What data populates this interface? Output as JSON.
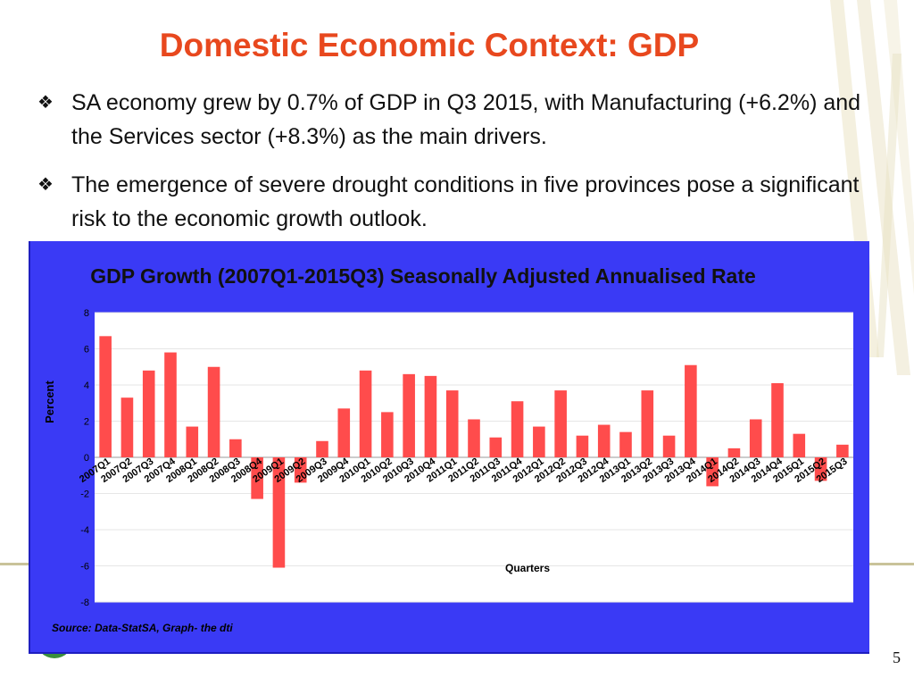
{
  "slide": {
    "title": "Domestic Economic Context: GDP",
    "page_number": "5",
    "bullets": [
      {
        "text": "SA economy grew by 0.7% of GDP in Q3 2015, with Manufacturing (+6.2%) and the Services sector (+8.3%) as the main drivers."
      },
      {
        "text": "The emergence of severe drought conditions in five provinces pose a significant risk to the economic growth outlook."
      }
    ],
    "source": "Source: Data-StatSA, Graph- the dti",
    "colors": {
      "title": "#e8481e",
      "panel": "#3a3af5",
      "bar": "#ff4c4c"
    }
  },
  "chart_data": {
    "type": "bar",
    "title": "GDP Growth (2007Q1-2015Q3) Seasonally Adjusted Annualised Rate",
    "xlabel": "Quarters",
    "ylabel": "Percent",
    "ylim": [
      -8,
      8
    ],
    "yticks": [
      -8,
      -6,
      -4,
      -2,
      0,
      2,
      4,
      6,
      8
    ],
    "grid": true,
    "categories": [
      "2007Q1",
      "2007Q2",
      "2007Q3",
      "2007Q4",
      "2008Q1",
      "2008Q2",
      "2008Q3",
      "2008Q4",
      "2009Q1",
      "2009Q2",
      "2009Q3",
      "2009Q4",
      "2010Q1",
      "2010Q2",
      "2010Q3",
      "2010Q4",
      "2011Q1",
      "2011Q2",
      "2011Q3",
      "2011Q4",
      "2012Q1",
      "2012Q2",
      "2012Q3",
      "2012Q4",
      "2013Q1",
      "2013Q2",
      "2013Q3",
      "2013Q4",
      "2014Q1",
      "2014Q2",
      "2014Q3",
      "2014Q4",
      "2015Q1",
      "2015Q2",
      "2015Q3"
    ],
    "values": [
      6.7,
      3.3,
      4.8,
      5.8,
      1.7,
      5.0,
      1.0,
      -2.3,
      -6.1,
      -1.4,
      0.9,
      2.7,
      4.8,
      2.5,
      4.6,
      4.5,
      3.7,
      2.1,
      1.1,
      3.1,
      1.7,
      3.7,
      1.2,
      1.8,
      1.4,
      3.7,
      1.2,
      5.1,
      -1.6,
      0.5,
      2.1,
      4.1,
      1.3,
      -1.3,
      0.7
    ]
  }
}
